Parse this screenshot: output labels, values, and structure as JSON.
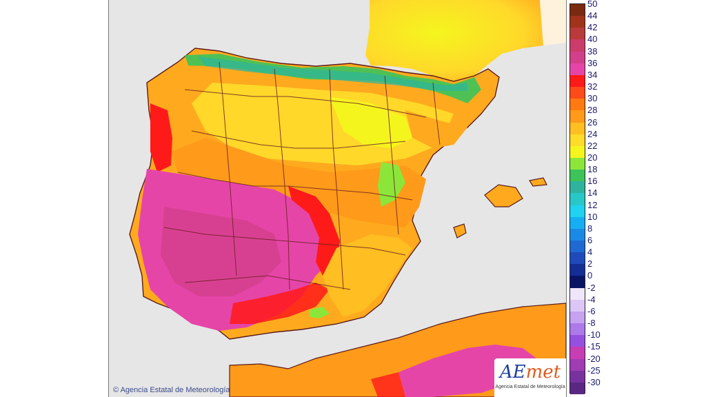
{
  "map": {
    "copyright": "Agencia Estatal de Meteorología",
    "logo": {
      "brand": "AEmet",
      "brand_ae": "AE",
      "brand_met": "met",
      "subtitle": "Agencia Estatal de Meteorología"
    },
    "colors": {
      "sea": "#e6e6e6",
      "border": "#5a1a1a",
      "border_line": "#6b2020"
    }
  },
  "legend": {
    "stops": [
      {
        "label": "50",
        "color": "#7a2a10"
      },
      {
        "label": "44",
        "color": "#a0331a"
      },
      {
        "label": "42",
        "color": "#b83a3a"
      },
      {
        "label": "40",
        "color": "#cc3c6a"
      },
      {
        "label": "38",
        "color": "#d23f8a"
      },
      {
        "label": "36",
        "color": "#e645a8"
      },
      {
        "label": "34",
        "color": "#ff1a1a"
      },
      {
        "label": "32",
        "color": "#ff4a1a"
      },
      {
        "label": "30",
        "color": "#ff7a10"
      },
      {
        "label": "28",
        "color": "#ff9a1a"
      },
      {
        "label": "26",
        "color": "#ffbe22"
      },
      {
        "label": "24",
        "color": "#ffdc2a"
      },
      {
        "label": "22",
        "color": "#f5f51e"
      },
      {
        "label": "20",
        "color": "#8ce63a"
      },
      {
        "label": "18",
        "color": "#3cc35a"
      },
      {
        "label": "16",
        "color": "#2eb39e"
      },
      {
        "label": "14",
        "color": "#28c8c8"
      },
      {
        "label": "12",
        "color": "#1ed2f0"
      },
      {
        "label": "10",
        "color": "#16aef2"
      },
      {
        "label": "8",
        "color": "#1a8ae6"
      },
      {
        "label": "6",
        "color": "#1e6ad2"
      },
      {
        "label": "4",
        "color": "#1e4aba"
      },
      {
        "label": "2",
        "color": "#142e96"
      },
      {
        "label": "0",
        "color": "#0a1464"
      },
      {
        "label": "-2",
        "color": "#f0e6fa"
      },
      {
        "label": "-4",
        "color": "#dcc6f6"
      },
      {
        "label": "-6",
        "color": "#c6a2f0"
      },
      {
        "label": "-8",
        "color": "#ae7aea"
      },
      {
        "label": "-10",
        "color": "#9650e0"
      },
      {
        "label": "-15",
        "color": "#c83cb4"
      },
      {
        "label": "-20",
        "color": "#a03cb4"
      },
      {
        "label": "-25",
        "color": "#7832a0"
      },
      {
        "label": "-30",
        "color": "#5a2882"
      }
    ]
  }
}
